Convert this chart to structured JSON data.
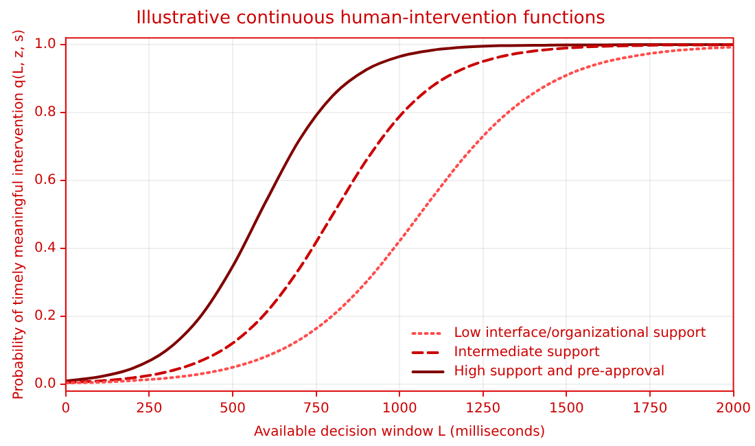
{
  "chart_data": {
    "type": "line",
    "title": "Illustrative continuous human-intervention functions",
    "xlabel": "Available decision window L (milliseconds)",
    "ylabel": "Probability of timely meaningful intervention q(L, z, s)",
    "x": [
      0,
      100,
      200,
      300,
      400,
      500,
      600,
      700,
      800,
      900,
      1000,
      1100,
      1200,
      1300,
      1400,
      1500,
      1600,
      1700,
      1800,
      1900,
      2000
    ],
    "series": [
      {
        "name": "Low interface/organizational support",
        "color": "#ff4d4d",
        "line_style": "dotted",
        "values": [
          0.004,
          0.006,
          0.011,
          0.018,
          0.03,
          0.05,
          0.082,
          0.131,
          0.203,
          0.301,
          0.422,
          0.552,
          0.676,
          0.779,
          0.856,
          0.91,
          0.945,
          0.966,
          0.98,
          0.988,
          0.993
        ]
      },
      {
        "name": "Intermediate support",
        "color": "#cc0000",
        "line_style": "dashed",
        "values": [
          0.005,
          0.01,
          0.019,
          0.036,
          0.067,
          0.121,
          0.211,
          0.341,
          0.5,
          0.659,
          0.789,
          0.879,
          0.933,
          0.964,
          0.981,
          0.99,
          0.995,
          0.997,
          0.999,
          0.999,
          1.0
        ]
      },
      {
        "name": "High support and pre-approval",
        "color": "#800000",
        "line_style": "solid",
        "values": [
          0.01,
          0.022,
          0.047,
          0.099,
          0.195,
          0.347,
          0.539,
          0.72,
          0.85,
          0.926,
          0.965,
          0.984,
          0.993,
          0.997,
          0.998,
          0.999,
          0.999,
          1.0,
          1.0,
          1.0,
          1.0
        ]
      }
    ],
    "xlim": [
      0,
      2000
    ],
    "xticks": [
      0,
      250,
      500,
      750,
      1000,
      1250,
      1500,
      1750,
      2000
    ],
    "ylim": [
      -0.02,
      1.02
    ],
    "yticks": [
      {
        "value": 0,
        "label": "0.0"
      },
      {
        "value": 0.2,
        "label": "0.2"
      },
      {
        "value": 0.4,
        "label": "0.4"
      },
      {
        "value": 0.6,
        "label": "0.6"
      },
      {
        "value": 0.8,
        "label": "0.8"
      },
      {
        "value": 1,
        "label": "1.0"
      }
    ],
    "grid": true,
    "legend": "bottom right",
    "marker": "none"
  }
}
